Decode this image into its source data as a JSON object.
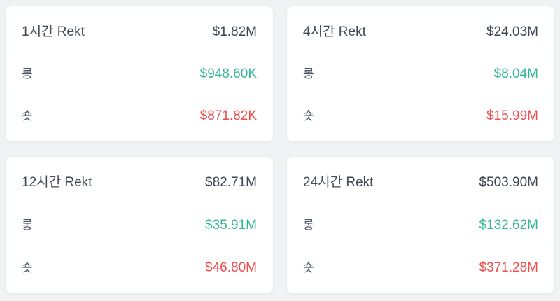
{
  "theme": {
    "background": "#f1f2f4",
    "card_background": "#ffffff",
    "card_border": "#ebecee",
    "title_color": "#414a56",
    "total_color": "#3d4552",
    "label_color": "#4d5662",
    "long_color": "#35b694",
    "short_color": "#ef4e4e"
  },
  "cards": [
    {
      "title": "1시간 Rekt",
      "total": "$1.82M",
      "long_label": "롱",
      "long_value": "$948.60K",
      "short_label": "숏",
      "short_value": "$871.82K"
    },
    {
      "title": "4시간 Rekt",
      "total": "$24.03M",
      "long_label": "롱",
      "long_value": "$8.04M",
      "short_label": "숏",
      "short_value": "$15.99M"
    },
    {
      "title": "12시간 Rekt",
      "total": "$82.71M",
      "long_label": "롱",
      "long_value": "$35.91M",
      "short_label": "숏",
      "short_value": "$46.80M"
    },
    {
      "title": "24시간 Rekt",
      "total": "$503.90M",
      "long_label": "롱",
      "long_value": "$132.62M",
      "short_label": "숏",
      "short_value": "$371.28M"
    }
  ]
}
